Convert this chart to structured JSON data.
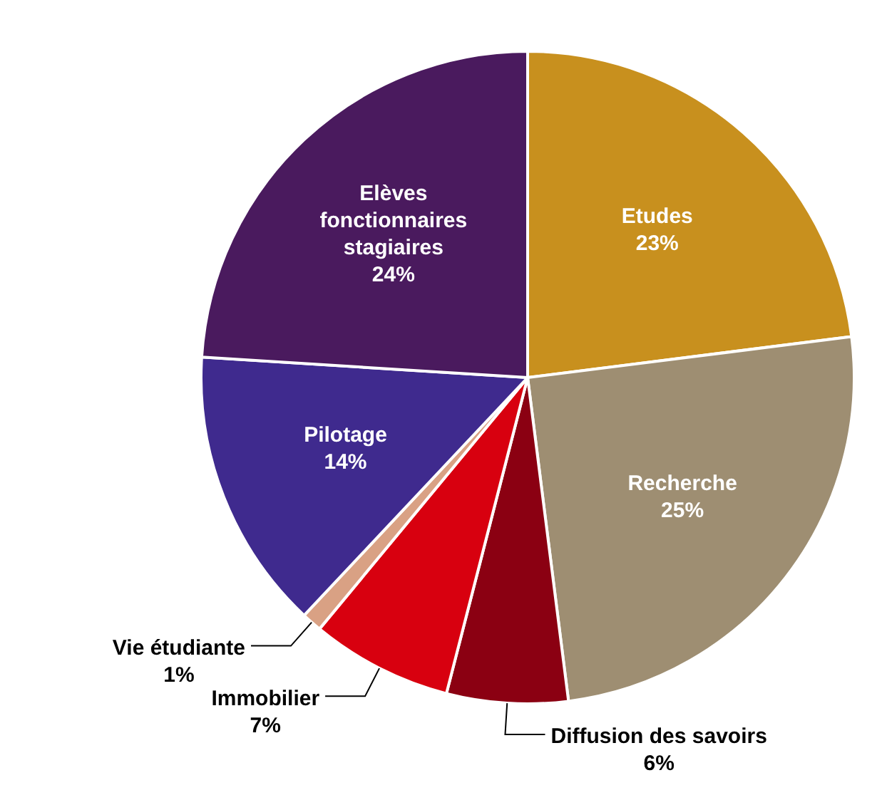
{
  "chart_data": {
    "type": "pie",
    "categories": [
      "Etudes",
      "Recherche",
      "Diffusion des savoirs",
      "Immobilier",
      "Vie étudiante",
      "Pilotage",
      "Elèves fonctionnaires stagiaires"
    ],
    "values": [
      23,
      25,
      6,
      7,
      1,
      14,
      24
    ],
    "value_labels": [
      "23%",
      "25%",
      "6%",
      "7%",
      "1%",
      "14%",
      "24%"
    ],
    "colors": [
      "#c8901e",
      "#9e8e72",
      "#8b0012",
      "#d8000f",
      "#d9a184",
      "#3f2a8e",
      "#4a1a5e"
    ]
  }
}
